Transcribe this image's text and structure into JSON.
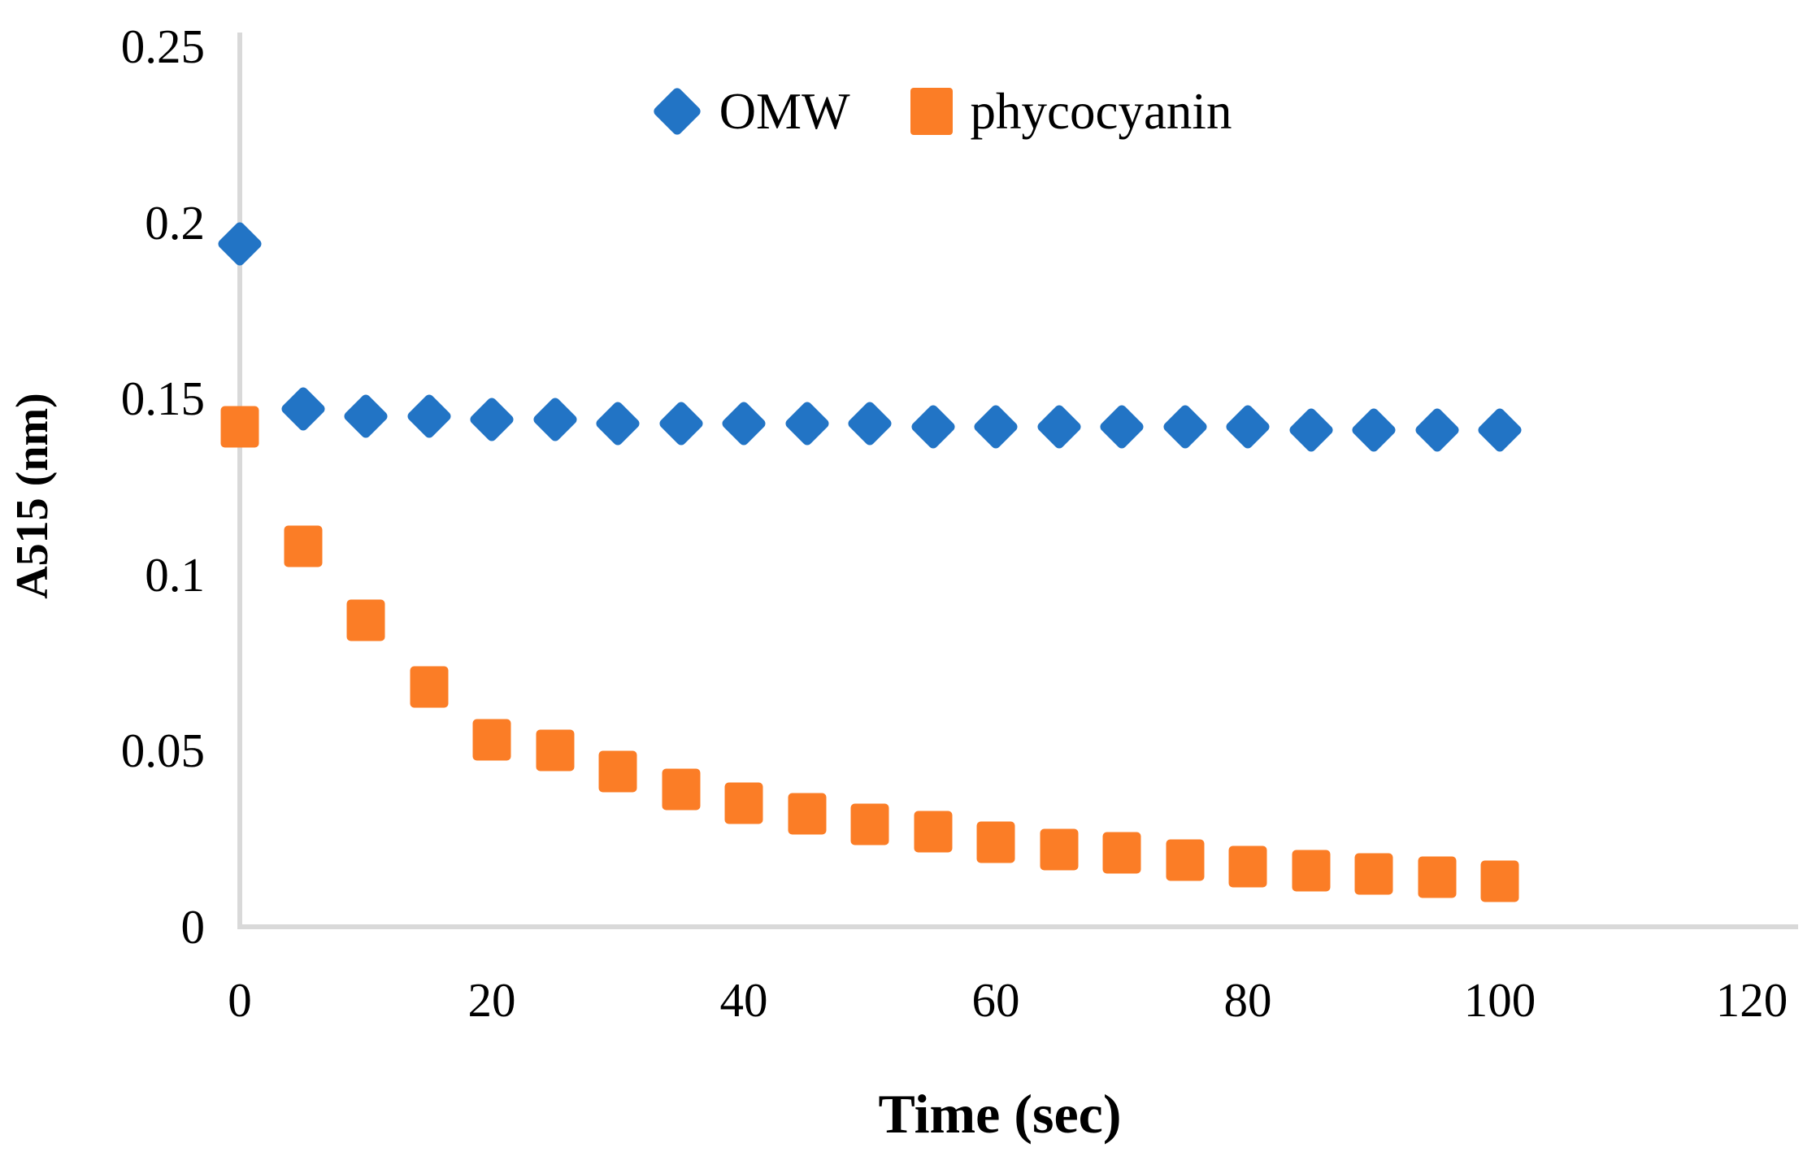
{
  "chart_data": {
    "type": "scatter",
    "title": "",
    "xlabel": "Time (sec)",
    "ylabel": "A515 (nm)",
    "xlim": [
      0,
      120
    ],
    "ylim": [
      0,
      0.25
    ],
    "x_ticks": [
      0,
      20,
      40,
      60,
      80,
      100,
      120
    ],
    "y_ticks": [
      0,
      0.05,
      0.1,
      0.15,
      0.2,
      0.25
    ],
    "y_tick_labels": [
      "0",
      "0.05",
      "0.1",
      "0.15",
      "0.2",
      "0.25"
    ],
    "grid": false,
    "legend_position": "top-center",
    "x": [
      0,
      5,
      10,
      15,
      20,
      25,
      30,
      35,
      40,
      45,
      50,
      55,
      60,
      65,
      70,
      75,
      80,
      85,
      90,
      95,
      100
    ],
    "series": [
      {
        "name": "OMW",
        "marker": "diamond",
        "color": "#2274C5",
        "values": [
          0.194,
          0.147,
          0.145,
          0.145,
          0.144,
          0.144,
          0.143,
          0.143,
          0.143,
          0.143,
          0.143,
          0.142,
          0.142,
          0.142,
          0.142,
          0.142,
          0.142,
          0.141,
          0.141,
          0.141,
          0.141
        ]
      },
      {
        "name": "phycocyanin",
        "marker": "square",
        "color": "#FB7D26",
        "values": [
          0.142,
          0.108,
          0.087,
          0.068,
          0.053,
          0.05,
          0.044,
          0.039,
          0.035,
          0.032,
          0.029,
          0.027,
          0.024,
          0.022,
          0.021,
          0.019,
          0.017,
          0.016,
          0.015,
          0.014,
          0.013
        ]
      }
    ],
    "axis_line_color": "#D9D9D9",
    "text_color": "#000000",
    "background_color": "#FFFFFF"
  }
}
